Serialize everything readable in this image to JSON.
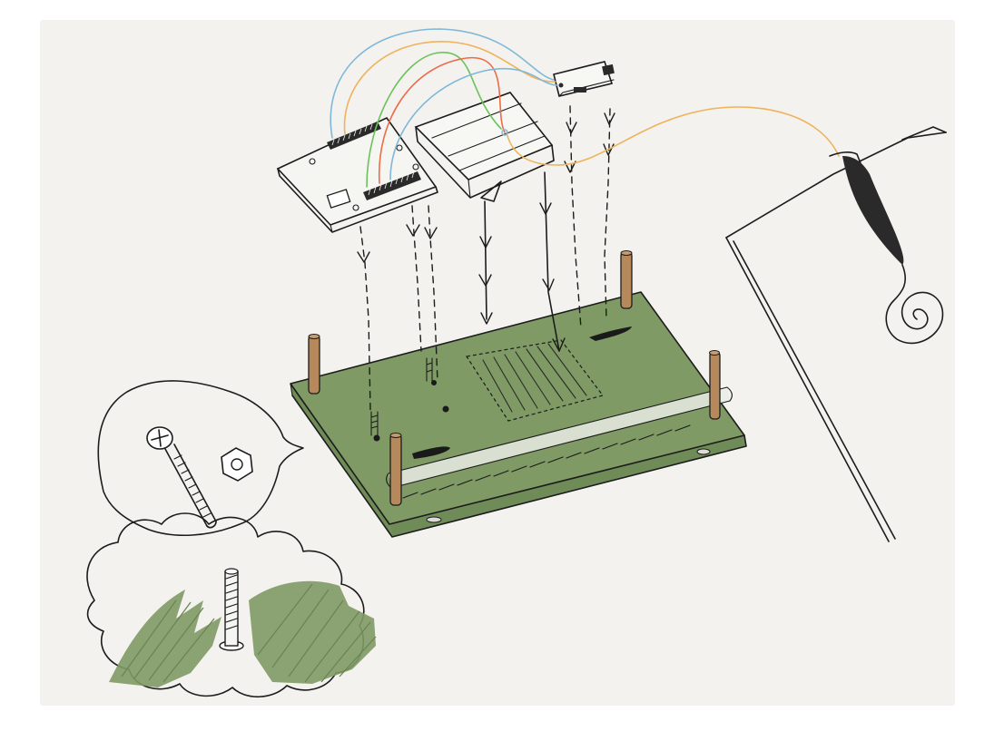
{
  "image": {
    "kind": "hand-drawn sketch",
    "colors": {
      "paper": "#f3f2ef",
      "board_green": "#7f9a64",
      "board_green_dark": "#6f8b57",
      "standoff_brass": "#b5895b",
      "ink": "#1c1c1c",
      "wire_blue": "#7fb8d8",
      "wire_orange": "#f0b25a",
      "wire_green": "#6cc25a",
      "wire_red": "#ee6b4a"
    }
  }
}
